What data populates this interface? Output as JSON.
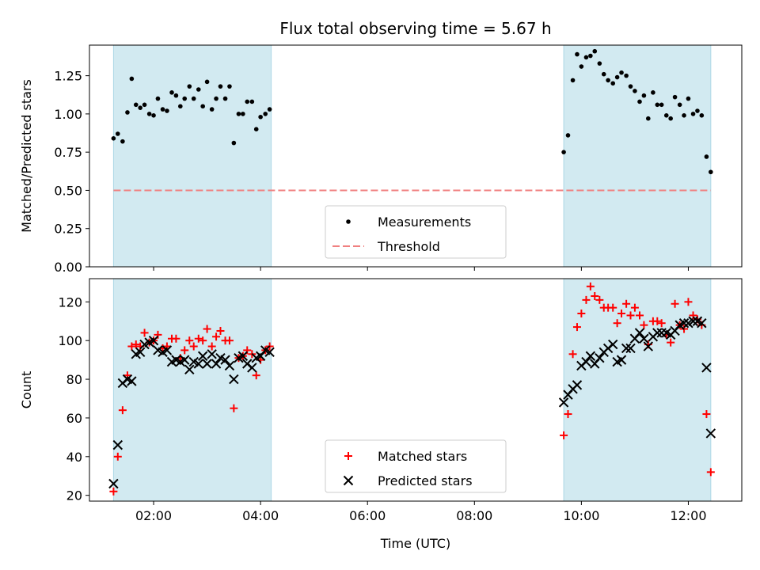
{
  "title": "Flux total observing time = 5.67 h",
  "chart_data": [
    {
      "type": "scatter",
      "name": "ratio-panel",
      "ylabel": "Matched/Predicted stars",
      "ylim": [
        0.0,
        1.45
      ],
      "yticks": [
        0.0,
        0.25,
        0.5,
        0.75,
        1.0,
        1.25
      ],
      "ytick_labels": [
        "0.00",
        "0.25",
        "0.50",
        "0.75",
        "1.00",
        "1.25"
      ],
      "xlim": [
        0.8,
        13.0
      ],
      "xticks": [
        2,
        4,
        6,
        8,
        10,
        12
      ],
      "show_xtick_labels": false,
      "shaded_regions": [
        [
          1.25,
          4.2
        ],
        [
          9.67,
          12.42
        ]
      ],
      "threshold": 0.5,
      "legend": {
        "placement": "lower-center",
        "entries": [
          "Measurements",
          "Threshold"
        ]
      },
      "colors": {
        "measurements": "#000000",
        "threshold": "#f08080",
        "shade": "#add8e6"
      },
      "series": [
        {
          "name": "Measurements",
          "marker": "dot",
          "points": [
            [
              1.25,
              0.84
            ],
            [
              1.33,
              0.87
            ],
            [
              1.42,
              0.82
            ],
            [
              1.51,
              1.01
            ],
            [
              1.59,
              1.23
            ],
            [
              1.67,
              1.06
            ],
            [
              1.75,
              1.04
            ],
            [
              1.83,
              1.06
            ],
            [
              1.92,
              1.0
            ],
            [
              2.0,
              0.99
            ],
            [
              2.08,
              1.1
            ],
            [
              2.17,
              1.03
            ],
            [
              2.25,
              1.02
            ],
            [
              2.34,
              1.14
            ],
            [
              2.42,
              1.12
            ],
            [
              2.5,
              1.05
            ],
            [
              2.58,
              1.1
            ],
            [
              2.67,
              1.18
            ],
            [
              2.75,
              1.1
            ],
            [
              2.84,
              1.16
            ],
            [
              2.92,
              1.05
            ],
            [
              3.0,
              1.21
            ],
            [
              3.09,
              1.03
            ],
            [
              3.17,
              1.1
            ],
            [
              3.25,
              1.18
            ],
            [
              3.34,
              1.1
            ],
            [
              3.42,
              1.18
            ],
            [
              3.5,
              0.81
            ],
            [
              3.59,
              1.0
            ],
            [
              3.67,
              1.0
            ],
            [
              3.75,
              1.08
            ],
            [
              3.84,
              1.08
            ],
            [
              3.92,
              0.9
            ],
            [
              4.0,
              0.98
            ],
            [
              4.09,
              1.0
            ],
            [
              4.17,
              1.03
            ],
            [
              9.67,
              0.75
            ],
            [
              9.75,
              0.86
            ],
            [
              9.84,
              1.22
            ],
            [
              9.92,
              1.39
            ],
            [
              10.0,
              1.31
            ],
            [
              10.09,
              1.37
            ],
            [
              10.17,
              1.38
            ],
            [
              10.25,
              1.41
            ],
            [
              10.34,
              1.33
            ],
            [
              10.42,
              1.26
            ],
            [
              10.5,
              1.22
            ],
            [
              10.59,
              1.2
            ],
            [
              10.67,
              1.24
            ],
            [
              10.75,
              1.27
            ],
            [
              10.84,
              1.25
            ],
            [
              10.92,
              1.18
            ],
            [
              11.0,
              1.15
            ],
            [
              11.09,
              1.08
            ],
            [
              11.17,
              1.12
            ],
            [
              11.25,
              0.97
            ],
            [
              11.34,
              1.14
            ],
            [
              11.42,
              1.06
            ],
            [
              11.5,
              1.06
            ],
            [
              11.59,
              0.99
            ],
            [
              11.67,
              0.97
            ],
            [
              11.75,
              1.11
            ],
            [
              11.84,
              1.06
            ],
            [
              11.92,
              0.99
            ],
            [
              12.0,
              1.1
            ],
            [
              12.09,
              1.0
            ],
            [
              12.17,
              1.02
            ],
            [
              12.25,
              0.99
            ],
            [
              12.34,
              0.72
            ],
            [
              12.42,
              0.62
            ]
          ]
        }
      ]
    },
    {
      "type": "scatter",
      "name": "count-panel",
      "xlabel": "Time (UTC)",
      "ylabel": "Count",
      "ylim": [
        17,
        132
      ],
      "yticks": [
        20,
        40,
        60,
        80,
        100,
        120
      ],
      "ytick_labels": [
        "20",
        "40",
        "60",
        "80",
        "100",
        "120"
      ],
      "xlim": [
        0.8,
        13.0
      ],
      "xticks": [
        2,
        4,
        6,
        8,
        10,
        12
      ],
      "xtick_labels": [
        "02:00",
        "04:00",
        "06:00",
        "08:00",
        "10:00",
        "12:00"
      ],
      "shaded_regions": [
        [
          1.25,
          4.2
        ],
        [
          9.67,
          12.42
        ]
      ],
      "legend": {
        "placement": "lower-center",
        "entries": [
          "Matched stars",
          "Predicted stars"
        ]
      },
      "colors": {
        "matched": "#ff0000",
        "predicted": "#000000",
        "shade": "#add8e6"
      },
      "series": [
        {
          "name": "Matched stars",
          "marker": "plus",
          "points": [
            [
              1.25,
              22
            ],
            [
              1.33,
              40
            ],
            [
              1.42,
              64
            ],
            [
              1.51,
              82
            ],
            [
              1.59,
              97
            ],
            [
              1.67,
              98
            ],
            [
              1.75,
              97
            ],
            [
              1.83,
              104
            ],
            [
              1.92,
              99
            ],
            [
              2.0,
              100
            ],
            [
              2.08,
              103
            ],
            [
              2.17,
              96
            ],
            [
              2.25,
              97
            ],
            [
              2.34,
              101
            ],
            [
              2.42,
              101
            ],
            [
              2.5,
              91
            ],
            [
              2.58,
              95
            ],
            [
              2.67,
              100
            ],
            [
              2.75,
              97
            ],
            [
              2.84,
              101
            ],
            [
              2.92,
              100
            ],
            [
              3.0,
              106
            ],
            [
              3.09,
              97
            ],
            [
              3.17,
              102
            ],
            [
              3.25,
              105
            ],
            [
              3.34,
              100
            ],
            [
              3.42,
              100
            ],
            [
              3.5,
              65
            ],
            [
              3.59,
              91
            ],
            [
              3.67,
              92
            ],
            [
              3.75,
              95
            ],
            [
              3.84,
              93
            ],
            [
              3.92,
              82
            ],
            [
              4.0,
              90
            ],
            [
              4.09,
              95
            ],
            [
              4.17,
              97
            ],
            [
              9.67,
              51
            ],
            [
              9.75,
              62
            ],
            [
              9.84,
              93
            ],
            [
              9.92,
              107
            ],
            [
              10.0,
              114
            ],
            [
              10.09,
              121
            ],
            [
              10.17,
              128
            ],
            [
              10.25,
              123
            ],
            [
              10.34,
              121
            ],
            [
              10.42,
              117
            ],
            [
              10.5,
              117
            ],
            [
              10.59,
              117
            ],
            [
              10.67,
              109
            ],
            [
              10.75,
              114
            ],
            [
              10.84,
              119
            ],
            [
              10.92,
              113
            ],
            [
              11.0,
              117
            ],
            [
              11.09,
              113
            ],
            [
              11.17,
              108
            ],
            [
              11.25,
              98
            ],
            [
              11.34,
              110
            ],
            [
              11.42,
              110
            ],
            [
              11.5,
              109
            ],
            [
              11.59,
              103
            ],
            [
              11.67,
              99
            ],
            [
              11.75,
              119
            ],
            [
              11.84,
              108
            ],
            [
              11.92,
              106
            ],
            [
              12.0,
              120
            ],
            [
              12.09,
              113
            ],
            [
              12.17,
              111
            ],
            [
              12.25,
              108
            ],
            [
              12.34,
              62
            ],
            [
              12.42,
              32
            ]
          ]
        },
        {
          "name": "Predicted stars",
          "marker": "x",
          "points": [
            [
              1.25,
              26
            ],
            [
              1.33,
              46
            ],
            [
              1.42,
              78
            ],
            [
              1.51,
              80
            ],
            [
              1.59,
              79
            ],
            [
              1.67,
              93
            ],
            [
              1.75,
              94
            ],
            [
              1.83,
              98
            ],
            [
              1.92,
              99
            ],
            [
              2.0,
              100
            ],
            [
              2.08,
              95
            ],
            [
              2.17,
              94
            ],
            [
              2.25,
              95
            ],
            [
              2.34,
              89
            ],
            [
              2.42,
              90
            ],
            [
              2.5,
              89
            ],
            [
              2.58,
              90
            ],
            [
              2.67,
              85
            ],
            [
              2.75,
              89
            ],
            [
              2.84,
              88
            ],
            [
              2.92,
              92
            ],
            [
              3.0,
              88
            ],
            [
              3.09,
              93
            ],
            [
              3.17,
              88
            ],
            [
              3.25,
              91
            ],
            [
              3.34,
              90
            ],
            [
              3.42,
              87
            ],
            [
              3.5,
              80
            ],
            [
              3.59,
              91
            ],
            [
              3.67,
              92
            ],
            [
              3.75,
              88
            ],
            [
              3.84,
              86
            ],
            [
              3.92,
              91
            ],
            [
              4.0,
              92
            ],
            [
              4.09,
              95
            ],
            [
              4.17,
              94
            ],
            [
              9.67,
              68
            ],
            [
              9.75,
              72
            ],
            [
              9.84,
              75
            ],
            [
              9.92,
              77
            ],
            [
              10.0,
              87
            ],
            [
              10.09,
              89
            ],
            [
              10.17,
              92
            ],
            [
              10.25,
              88
            ],
            [
              10.34,
              91
            ],
            [
              10.42,
              94
            ],
            [
              10.5,
              96
            ],
            [
              10.59,
              98
            ],
            [
              10.67,
              89
            ],
            [
              10.75,
              90
            ],
            [
              10.84,
              96
            ],
            [
              10.92,
              96
            ],
            [
              11.0,
              101
            ],
            [
              11.09,
              104
            ],
            [
              11.17,
              101
            ],
            [
              11.25,
              97
            ],
            [
              11.34,
              102
            ],
            [
              11.42,
              104
            ],
            [
              11.5,
              104
            ],
            [
              11.59,
              104
            ],
            [
              11.67,
              103
            ],
            [
              11.75,
              105
            ],
            [
              11.84,
              108
            ],
            [
              11.92,
              109
            ],
            [
              12.0,
              109
            ],
            [
              12.09,
              110
            ],
            [
              12.17,
              110
            ],
            [
              12.25,
              109
            ],
            [
              12.34,
              86
            ],
            [
              12.42,
              52
            ]
          ]
        }
      ]
    }
  ]
}
